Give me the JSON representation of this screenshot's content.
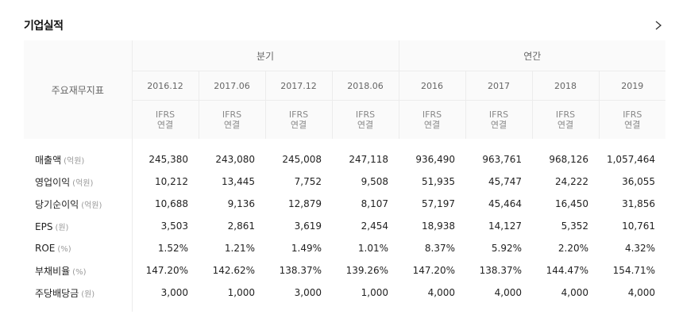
{
  "section": {
    "title": "기업실적"
  },
  "table": {
    "corner_label": "주요재무지표",
    "groups": [
      {
        "label": "분기"
      },
      {
        "label": "연간"
      }
    ],
    "periods": [
      "2016.12",
      "2017.06",
      "2017.12",
      "2018.06",
      "2016",
      "2017",
      "2018",
      "2019"
    ],
    "standard_line1": "IFRS",
    "standard_line2": "연결",
    "rows": [
      {
        "label": "매출액",
        "unit": "(억원)",
        "values": [
          "245,380",
          "243,080",
          "245,008",
          "247,118",
          "936,490",
          "963,761",
          "968,126",
          "1,057,464"
        ]
      },
      {
        "label": "영업이익",
        "unit": "(억원)",
        "values": [
          "10,212",
          "13,445",
          "7,752",
          "9,508",
          "51,935",
          "45,747",
          "24,222",
          "36,055"
        ]
      },
      {
        "label": "당기순이익",
        "unit": "(억원)",
        "values": [
          "10,688",
          "9,136",
          "12,879",
          "8,107",
          "57,197",
          "45,464",
          "16,450",
          "31,856"
        ]
      },
      {
        "label": "EPS",
        "unit": "(원)",
        "values": [
          "3,503",
          "2,861",
          "3,619",
          "2,454",
          "18,938",
          "14,127",
          "5,352",
          "10,761"
        ]
      },
      {
        "label": "ROE",
        "unit": "(%)",
        "values": [
          "1.52%",
          "1.21%",
          "1.49%",
          "1.01%",
          "8.37%",
          "5.92%",
          "2.20%",
          "4.32%"
        ]
      },
      {
        "label": "부채비율",
        "unit": "(%)",
        "values": [
          "147.20%",
          "142.62%",
          "138.37%",
          "139.26%",
          "147.20%",
          "138.37%",
          "144.47%",
          "154.71%"
        ]
      },
      {
        "label": "주당배당금",
        "unit": "(원)",
        "values": [
          "3,000",
          "1,000",
          "3,000",
          "1,000",
          "4,000",
          "4,000",
          "4,000",
          "4,000"
        ]
      }
    ]
  }
}
